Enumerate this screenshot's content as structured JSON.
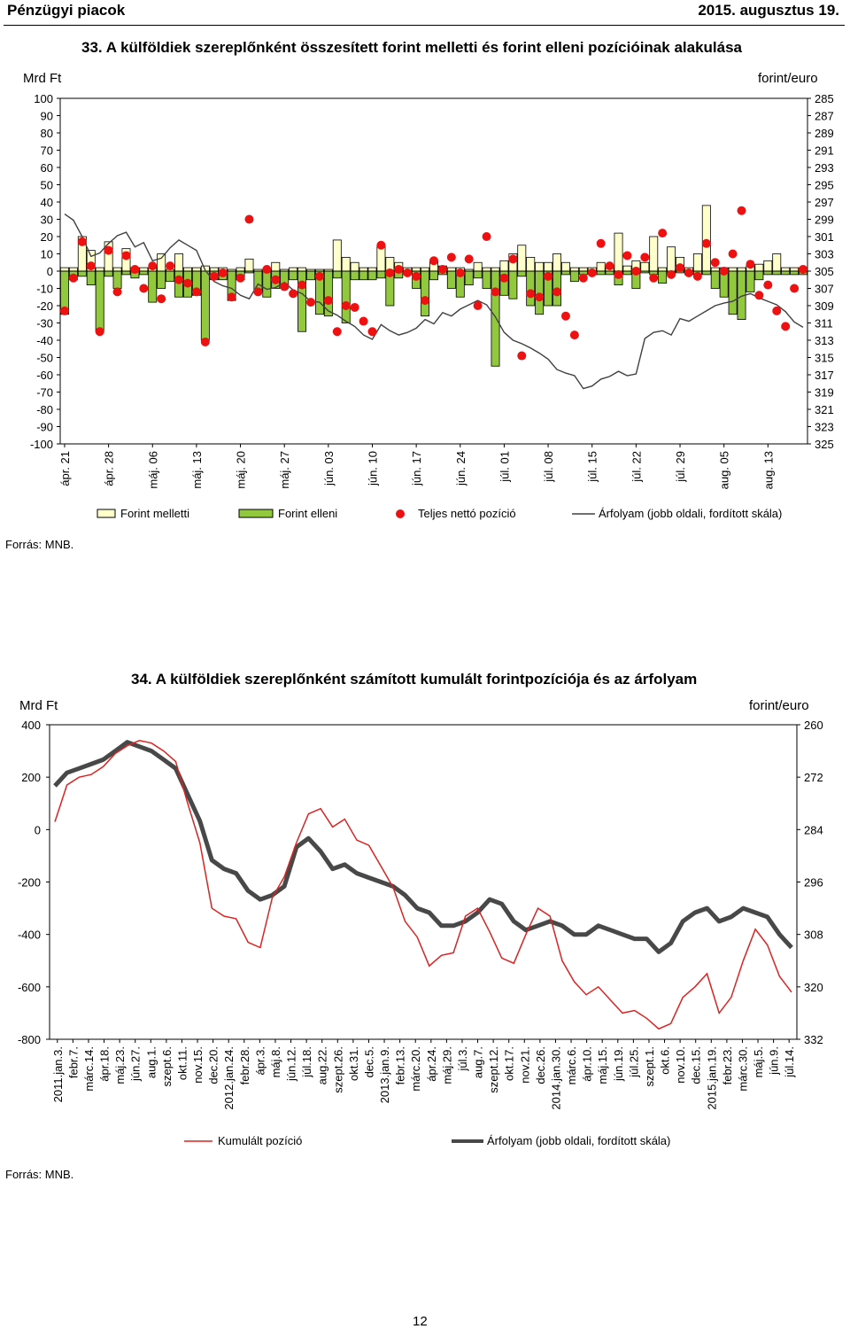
{
  "header": {
    "left": "Pénzügyi piacok",
    "right": "2015. augusztus 19."
  },
  "page_number": "12",
  "charts": [
    {
      "title": "33. A külföldiek szereplőnként összesített forint melletti és forint elleni pozícióinak alakulása",
      "left_unit": "Mrd Ft",
      "right_unit": "forint/euro",
      "source": "Forrás: MNB.",
      "legend": [
        "Forint melletti",
        "Forint elleni",
        "Teljes nettó pozíció",
        "Árfolyam (jobb oldali, fordított skála)"
      ]
    },
    {
      "title": "34. A külföldiek szereplőnként számított kumulált forintpozíciója és az árfolyam",
      "left_unit": "Mrd Ft",
      "right_unit": "forint/euro",
      "source": "Forrás: MNB.",
      "legend": [
        "Kumulált pozíció",
        "Árfolyam (jobb oldali, fordított skála)"
      ]
    }
  ],
  "chart_data": [
    {
      "type": "bar",
      "title": "33. A külföldiek szereplőnként összesített forint melletti és forint elleni pozícióinak alakulása",
      "ylabel": "Mrd Ft",
      "y2label": "forint/euro",
      "ylim": [
        -100,
        100
      ],
      "yticks": [
        100,
        90,
        80,
        70,
        60,
        50,
        40,
        30,
        20,
        10,
        0,
        -10,
        -20,
        -30,
        -40,
        -50,
        -60,
        -70,
        -80,
        -90,
        -100
      ],
      "y2lim": [
        285,
        325
      ],
      "y2ticks": [
        285,
        287,
        289,
        291,
        293,
        295,
        297,
        299,
        301,
        303,
        305,
        307,
        309,
        311,
        313,
        315,
        317,
        319,
        321,
        323,
        325
      ],
      "y2_inverted": true,
      "xticklabels": [
        "ápr. 21",
        "ápr. 28",
        "máj. 06",
        "máj. 13",
        "máj. 20",
        "máj. 27",
        "jún. 03",
        "jún. 10",
        "jún. 17",
        "jún. 24",
        "júl. 01",
        "júl. 08",
        "júl. 15",
        "júl. 22",
        "júl. 29",
        "aug. 05",
        "aug. 13"
      ],
      "days": 85,
      "series": [
        {
          "name": "Forint melletti",
          "color": "#ffffcc",
          "values": [
            2,
            2,
            20,
            12,
            2,
            17,
            2,
            13,
            2,
            2,
            2,
            10,
            1,
            10,
            2,
            2,
            3,
            2,
            2,
            1,
            2,
            7,
            1,
            1,
            5,
            1,
            2,
            2,
            1,
            1,
            1,
            18,
            8,
            5,
            2,
            2,
            15,
            8,
            5,
            2,
            2,
            2,
            6,
            3,
            2,
            2,
            1,
            5,
            2,
            2,
            6,
            10,
            15,
            8,
            5,
            5,
            10,
            5,
            2,
            2,
            2,
            5,
            2,
            22,
            3,
            6,
            5,
            20,
            2,
            14,
            8,
            2,
            10,
            38,
            2,
            2,
            2,
            2,
            3,
            4,
            6,
            10,
            2,
            2,
            2
          ]
        },
        {
          "name": "Forint elleni",
          "color": "#92c83e",
          "values": [
            -25,
            -5,
            -3,
            -8,
            -35,
            -3,
            -10,
            -2,
            -4,
            -2,
            -18,
            -10,
            -6,
            -15,
            -15,
            -14,
            -40,
            -5,
            -5,
            -17,
            -5,
            -1,
            -12,
            -15,
            -10,
            -10,
            -5,
            -35,
            -5,
            -25,
            -26,
            -4,
            -30,
            -5,
            -5,
            -5,
            -4,
            -20,
            -4,
            -2,
            -10,
            -26,
            -5,
            -2,
            -10,
            -15,
            -8,
            -4,
            -10,
            -55,
            -14,
            -16,
            -3,
            -20,
            -25,
            -20,
            -20,
            -2,
            -6,
            -2,
            -2,
            -2,
            -2,
            -8,
            -2,
            -10,
            -1,
            -2,
            -7,
            -2,
            -1,
            -2,
            -2,
            -2,
            -10,
            -15,
            -25,
            -28,
            -12,
            -5,
            -2,
            -2,
            -2,
            -2,
            -2
          ]
        },
        {
          "name": "Teljes nettó pozíció",
          "color": "#ee1111",
          "values": [
            -23,
            -4,
            17,
            3,
            -35,
            12,
            -12,
            9,
            1,
            -10,
            3,
            -16,
            3,
            -5,
            -7,
            -12,
            -41,
            -3,
            -1,
            -15,
            -4,
            30,
            -12,
            1,
            -5,
            -9,
            -13,
            -8,
            -18,
            -3,
            -17,
            -35,
            -20,
            -21,
            -29,
            -35,
            15,
            -1,
            1,
            -1,
            -3,
            -17,
            6,
            1,
            8,
            -1,
            7,
            -20,
            20,
            -12,
            -4,
            7,
            -49,
            -13,
            -15,
            -3,
            -12,
            -26,
            -37,
            -4,
            -1,
            16,
            3,
            -2,
            9,
            0,
            8,
            -4,
            22,
            -2,
            2,
            -1,
            -3,
            16,
            5,
            0,
            10,
            35,
            4,
            -14,
            -8,
            -23,
            -32,
            -10,
            1
          ]
        },
        {
          "name": "Árfolyam (jobb oldali, fordított skála)",
          "color": "#404040",
          "values": [
            298.4,
            299.1,
            301.0,
            303.3,
            302.9,
            301.8,
            300.9,
            300.5,
            302.2,
            301.7,
            303.8,
            303.5,
            302.3,
            301.4,
            302.0,
            302.6,
            304.9,
            306.2,
            306.7,
            307.0,
            307.8,
            308.2,
            306.5,
            307.1,
            306.9,
            306.3,
            307.2,
            307.6,
            308.5,
            308.6,
            309.6,
            310.1,
            310.8,
            311.4,
            312.4,
            312.9,
            311.2,
            311.9,
            312.4,
            312.1,
            311.6,
            310.6,
            311.1,
            309.8,
            310.2,
            309.4,
            308.9,
            308.4,
            308.9,
            310.3,
            312.1,
            313.0,
            313.4,
            313.9,
            314.5,
            315.2,
            316.4,
            316.8,
            317.1,
            318.6,
            318.3,
            317.5,
            317.2,
            316.6,
            317.1,
            316.9,
            312.8,
            312.1,
            311.9,
            312.4,
            310.5,
            310.8,
            310.2,
            309.6,
            309.0,
            308.7,
            308.5,
            307.9,
            307.6,
            308.1,
            308.5,
            308.9,
            309.7,
            310.9,
            311.5
          ]
        }
      ]
    },
    {
      "type": "line",
      "title": "34. A külföldiek szereplőnként számított kumulált forintpozíciója és az árfolyam",
      "ylabel": "Mrd Ft",
      "y2label": "forint/euro",
      "ylim": [
        -800,
        400
      ],
      "yticks": [
        400,
        200,
        0,
        -200,
        -400,
        -600,
        -800
      ],
      "y2lim": [
        260,
        332
      ],
      "y2ticks": [
        260,
        272,
        284,
        296,
        308,
        320,
        332
      ],
      "y2_inverted": true,
      "xticklabels": [
        "2011.jan.3.",
        "febr.7.",
        "márc.14.",
        "ápr.18.",
        "máj.23.",
        "jún.27.",
        "aug.1.",
        "szept.6.",
        "okt.11.",
        "nov.15.",
        "dec.20.",
        "2012.jan.24.",
        "febr.28.",
        "ápr.3.",
        "máj.8.",
        "jún.12.",
        "júl.18.",
        "aug.22.",
        "szept.26.",
        "okt.31.",
        "dec.5.",
        "2013.jan.9.",
        "febr.13.",
        "márc.20.",
        "ápr.24.",
        "máj.29.",
        "júl.3.",
        "aug.7.",
        "szept.12.",
        "okt.17.",
        "nov.21.",
        "dec.26.",
        "2014.jan.30.",
        "márc.6.",
        "ápr.10.",
        "máj.15.",
        "jún.19.",
        "júl.25.",
        "szept.1.",
        "okt.6.",
        "nov.10.",
        "dec.15.",
        "2015.jan.19.",
        "febr.23.",
        "márc.30.",
        "máj.5.",
        "jún.9.",
        "júl.14."
      ],
      "series": [
        {
          "name": "Kumulált pozíció",
          "color": "#dd2222",
          "values": [
            30,
            170,
            200,
            210,
            240,
            290,
            320,
            340,
            330,
            300,
            260,
            100,
            -50,
            -300,
            -330,
            -340,
            -430,
            -450,
            -260,
            -180,
            -50,
            60,
            80,
            10,
            40,
            -40,
            -60,
            -140,
            -220,
            -350,
            -410,
            -520,
            -480,
            -470,
            -330,
            -300,
            -390,
            -490,
            -510,
            -400,
            -300,
            -330,
            -500,
            -580,
            -630,
            -600,
            -650,
            -700,
            -690,
            -720,
            -760,
            -740,
            -640,
            -600,
            -550,
            -700,
            -640,
            -500,
            -380,
            -440,
            -560,
            -620
          ]
        },
        {
          "name": "Árfolyam (jobb oldali, fordított skála)",
          "color": "#484848",
          "values": [
            274,
            271,
            270,
            269,
            268,
            266,
            264,
            265,
            266,
            268,
            270,
            276,
            282,
            291,
            293,
            294,
            298,
            300,
            299,
            297,
            288,
            286,
            289,
            293,
            292,
            294,
            295,
            296,
            297,
            299,
            302,
            303,
            306,
            306,
            305,
            303,
            300,
            301,
            305,
            307,
            306,
            305,
            306,
            308,
            308,
            306,
            307,
            308,
            309,
            309,
            312,
            310,
            305,
            303,
            302,
            305,
            304,
            302,
            303,
            304,
            308,
            311
          ]
        }
      ]
    }
  ]
}
